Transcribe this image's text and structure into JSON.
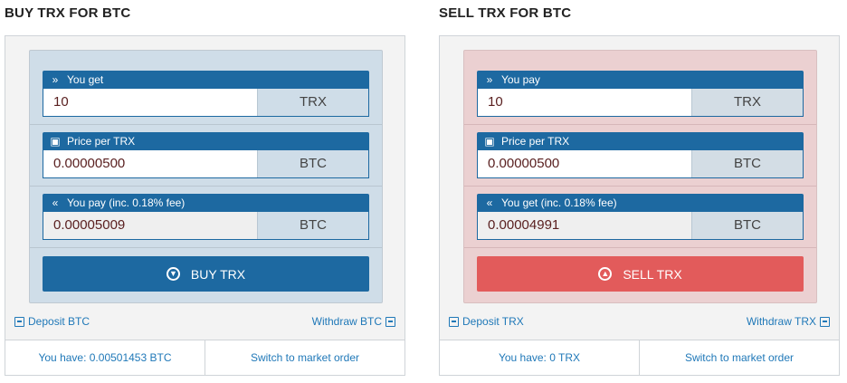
{
  "buy": {
    "title": "BUY TRX FOR BTC",
    "field1": {
      "label": "You get",
      "icon": "double-chevron-right-icon",
      "value": "10",
      "currency": "TRX"
    },
    "field2": {
      "label": "Price per TRX",
      "icon": "wallet-icon",
      "value": "0.00000500",
      "currency": "BTC"
    },
    "field3": {
      "label": "You pay (inc. 0.18% fee)",
      "icon": "double-chevron-left-icon",
      "value": "0.00005009",
      "currency": "BTC"
    },
    "button_label": "BUY TRX",
    "deposit_label": "Deposit BTC",
    "withdraw_label": "Withdraw BTC",
    "balance_label": "You have: 0.00501453 BTC",
    "switch_label": "Switch to market order",
    "accent": "#1d69a1"
  },
  "sell": {
    "title": "SELL TRX FOR BTC",
    "field1": {
      "label": "You pay",
      "icon": "double-chevron-right-icon",
      "value": "10",
      "currency": "TRX"
    },
    "field2": {
      "label": "Price per TRX",
      "icon": "wallet-icon",
      "value": "0.00000500",
      "currency": "BTC"
    },
    "field3": {
      "label": "You get (inc. 0.18% fee)",
      "icon": "double-chevron-left-icon",
      "value": "0.00004991",
      "currency": "BTC"
    },
    "button_label": "SELL TRX",
    "deposit_label": "Deposit TRX",
    "withdraw_label": "Withdraw TRX",
    "balance_label": "You have: 0 TRX",
    "switch_label": "Switch to market order",
    "accent": "#e25b5b"
  }
}
